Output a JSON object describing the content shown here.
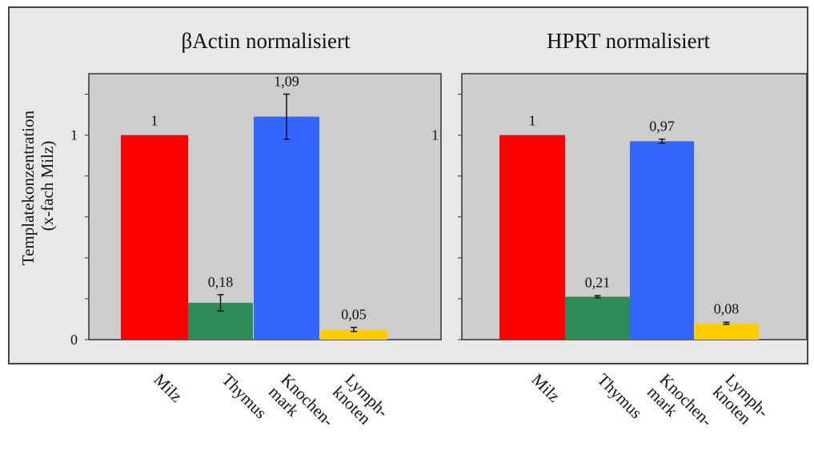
{
  "figure": {
    "ylabel_line1": "Templatekonzentration",
    "ylabel_line2": "(x-fach Milz)"
  },
  "chart_data": [
    {
      "type": "bar",
      "title": "βActin normalisiert",
      "categories": [
        "Milz",
        "Thymus",
        "Knochen-mark",
        "Lymph-knoten"
      ],
      "category_lines": [
        [
          "Milz"
        ],
        [
          "Thymus"
        ],
        [
          "Knochen-",
          "mark"
        ],
        [
          "Lymph-",
          "knoten"
        ]
      ],
      "values": [
        1,
        0.18,
        1.09,
        0.05
      ],
      "value_labels": [
        "1",
        "0,18",
        "1,09",
        "0,05"
      ],
      "error": [
        0,
        0.04,
        0.11,
        0.01
      ],
      "colors": [
        "#ff0000",
        "#2e8b57",
        "#3366ff",
        "#ffcc00"
      ],
      "ylim": [
        0,
        1.3
      ],
      "yticks": [
        0,
        1
      ],
      "ytick_labels": [
        "0",
        "1"
      ],
      "grid": false,
      "background": "#cdcdcd"
    },
    {
      "type": "bar",
      "title": "HPRT normalisiert",
      "categories": [
        "Milz",
        "Thymus",
        "Knochen-mark",
        "Lymph-knoten"
      ],
      "category_lines": [
        [
          "Milz"
        ],
        [
          "Thymus"
        ],
        [
          "Knochen-",
          "mark"
        ],
        [
          "Lymph-",
          "knoten"
        ]
      ],
      "values": [
        1,
        0.21,
        0.97,
        0.08
      ],
      "value_labels": [
        "1",
        "0,21",
        "0,97",
        "0,08"
      ],
      "error": [
        0,
        0.005,
        0.01,
        0.005
      ],
      "colors": [
        "#ff0000",
        "#2e8b57",
        "#3366ff",
        "#ffcc00"
      ],
      "ylim": [
        0,
        1.3
      ],
      "yticks": [
        1
      ],
      "ytick_labels": [
        "1"
      ],
      "grid": false,
      "background": "#cdcdcd"
    }
  ]
}
